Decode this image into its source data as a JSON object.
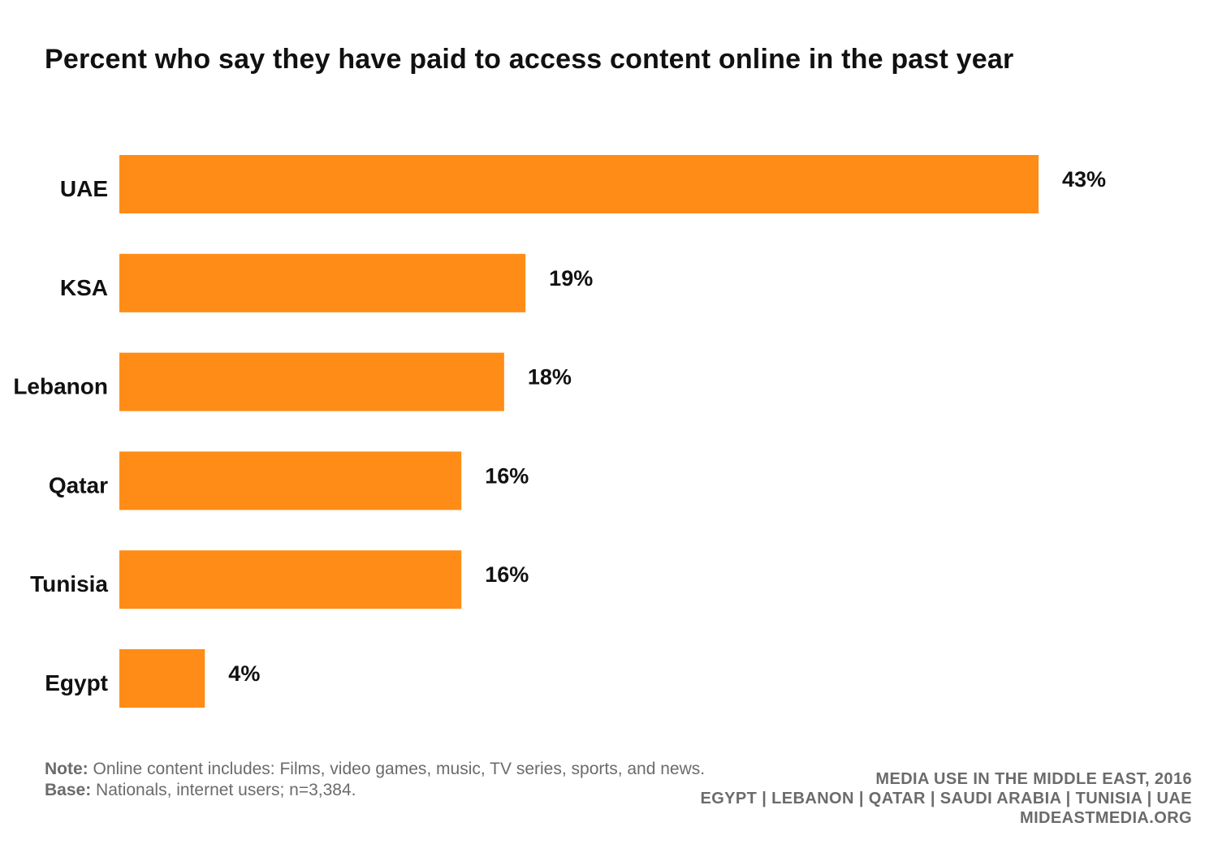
{
  "chart_data": {
    "type": "bar",
    "orientation": "horizontal",
    "title": "Percent who say they have paid to access content online in the past year",
    "categories": [
      "UAE",
      "KSA",
      "Lebanon",
      "Qatar",
      "Tunisia",
      "Egypt"
    ],
    "values": [
      43,
      19,
      18,
      16,
      16,
      4
    ],
    "data_labels": [
      "43%",
      "19%",
      "18%",
      "16%",
      "16%",
      "4%"
    ],
    "unit": "%",
    "xlim": [
      0,
      43
    ],
    "grid": false,
    "legend": "none",
    "bar_color": "#FF8C16"
  },
  "footnote": {
    "note_label": "Note:",
    "note_text": " Online content includes: Films, video games, music, TV series, sports, and news.",
    "base_label": "Base:",
    "base_text": " Nationals, internet users; n=3,384."
  },
  "source": {
    "line1": "MEDIA USE IN THE MIDDLE EAST, 2016",
    "line2": "EGYPT | LEBANON | QATAR | SAUDI ARABIA | TUNISIA | UAE",
    "line3": "MIDEASTMEDIA.ORG"
  }
}
